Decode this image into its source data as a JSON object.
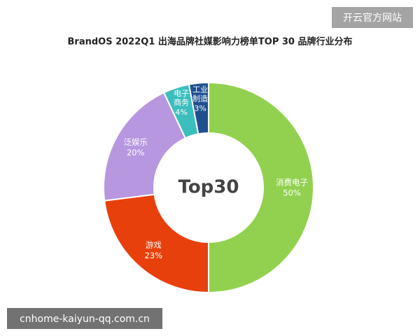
{
  "chart_data": {
    "type": "pie",
    "title": "BrandOS 2022Q1 出海品牌社媒影响力榜单TOP 30 品牌行业分布",
    "center_label": "Top30",
    "categories": [
      "消费电子",
      "游戏",
      "泛娱乐",
      "电子商务",
      "工业制造"
    ],
    "values": [
      50,
      23,
      20,
      4,
      3
    ],
    "value_labels": [
      "50%",
      "23%",
      "20%",
      "4%",
      "3%"
    ],
    "colors": [
      "#92d14f",
      "#e8400c",
      "#b797e0",
      "#3bbfbe",
      "#1f4f8f"
    ],
    "donut": true
  },
  "watermarks": [
    "开云官方网站",
    "cnhome-kaiyun-qq.com.cn"
  ]
}
